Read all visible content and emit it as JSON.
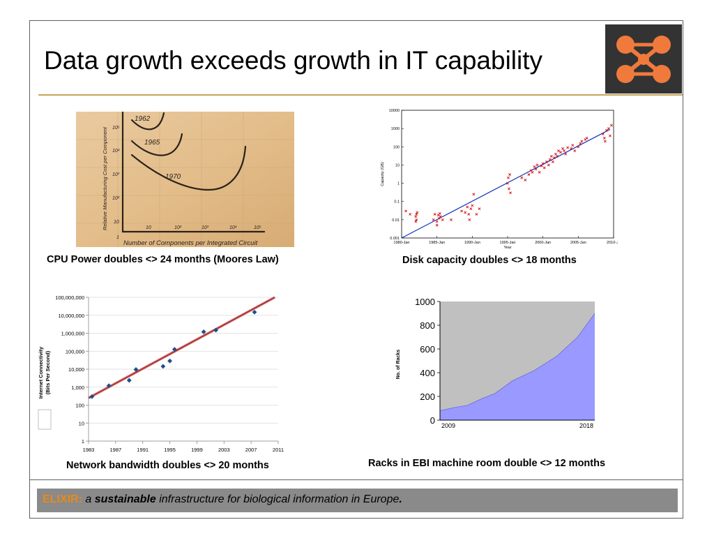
{
  "slide": {
    "title": "Data growth exceeds growth in IT capability",
    "footer": {
      "brand": "ELIXIR:",
      "a": "a",
      "sustainable": "sustainable",
      "rest": "infrastructure for biological information in Europe",
      "period": "."
    }
  },
  "colors": {
    "accent_rule": "#c8a45a",
    "logo_bg": "#333333",
    "logo_mark": "#f07a3c",
    "footer_bg": "#8a8a8a",
    "footer_brand": "#e88a1a"
  },
  "captions": {
    "cpu": "CPU Power doubles <> 24 months (Moores Law)",
    "disk": "Disk capacity doubles <> 18 months",
    "network": "Network bandwidth doubles <> 20 months",
    "racks": "Racks in EBI machine room double <> 12 months"
  },
  "moore_sketch": {
    "curve_labels": [
      "1962",
      "1965",
      "1970"
    ],
    "x_ticks": [
      "1",
      "10",
      "10²",
      "10³",
      "10⁴",
      "10⁵"
    ],
    "y_ticks": [
      "10⁵",
      "10⁴",
      "10³",
      "10²",
      "10"
    ],
    "xlabel": "Number of Components per Integrated Circuit",
    "ylabel": "Relative Manufacturing Cost per Component"
  },
  "chart_data": [
    {
      "type": "scatter",
      "id": "disk",
      "xlabel": "Year",
      "ylabel": "Capacity (GB)",
      "yscale": "log",
      "xlim": [
        1980,
        2010
      ],
      "ylim": [
        0.001,
        10000
      ],
      "x_tick_labels": [
        "1980-Jan",
        "1985-Jan",
        "1990-Jan",
        "1995-Jan",
        "2000-Jan",
        "2005-Jan",
        "2010-Ja"
      ],
      "y_tick_labels": [
        "0.001",
        "0.01",
        "0.1",
        "1",
        "10",
        "100",
        "1000",
        "10000"
      ],
      "trend": [
        [
          1980,
          0.001
        ],
        [
          2009.5,
          900
        ]
      ],
      "points": [
        [
          1980.6,
          0.03
        ],
        [
          1981.2,
          0.02
        ],
        [
          1982,
          0.008
        ],
        [
          1982.1,
          0.01
        ],
        [
          1982,
          0.015
        ],
        [
          1982.1,
          0.02
        ],
        [
          1982.2,
          0.025
        ],
        [
          1984.5,
          0.01
        ],
        [
          1984.7,
          0.02
        ],
        [
          1985,
          0.005
        ],
        [
          1985,
          0.008
        ],
        [
          1985.3,
          0.012
        ],
        [
          1985.5,
          0.015
        ],
        [
          1985.2,
          0.018
        ],
        [
          1985.4,
          0.022
        ],
        [
          1985.8,
          0.01
        ],
        [
          1987,
          0.01
        ],
        [
          1988.5,
          0.03
        ],
        [
          1989,
          0.025
        ],
        [
          1989.3,
          0.05
        ],
        [
          1989.5,
          0.02
        ],
        [
          1989.6,
          0.01
        ],
        [
          1989.8,
          0.04
        ],
        [
          1990,
          0.06
        ],
        [
          1990.2,
          0.25
        ],
        [
          1990.6,
          0.02
        ],
        [
          1991,
          0.04
        ],
        [
          1995,
          1
        ],
        [
          1995.1,
          2
        ],
        [
          1995.2,
          0.5
        ],
        [
          1995.3,
          3
        ],
        [
          1995.4,
          0.3
        ],
        [
          1997,
          2
        ],
        [
          1997.5,
          1.5
        ],
        [
          1998,
          3
        ],
        [
          1998.3,
          5
        ],
        [
          1998.5,
          4
        ],
        [
          1998.8,
          8
        ],
        [
          1999,
          6
        ],
        [
          1999.2,
          10
        ],
        [
          1999.5,
          4
        ],
        [
          1999.8,
          9
        ],
        [
          2000,
          12
        ],
        [
          2000.2,
          7
        ],
        [
          2000.5,
          15
        ],
        [
          2000.8,
          10
        ],
        [
          2001,
          20
        ],
        [
          2001.2,
          30
        ],
        [
          2001.4,
          15
        ],
        [
          2001.6,
          25
        ],
        [
          2001.8,
          40
        ],
        [
          2002,
          30
        ],
        [
          2002.2,
          60
        ],
        [
          2002.5,
          50
        ],
        [
          2002.8,
          80
        ],
        [
          2003,
          60
        ],
        [
          2003.2,
          40
        ],
        [
          2003.5,
          90
        ],
        [
          2004,
          80
        ],
        [
          2004.2,
          120
        ],
        [
          2004.5,
          60
        ],
        [
          2005,
          100
        ],
        [
          2005.3,
          150
        ],
        [
          2005.5,
          200
        ],
        [
          2006,
          250
        ],
        [
          2006.2,
          300
        ],
        [
          2008.5,
          500
        ],
        [
          2008.7,
          300
        ],
        [
          2009,
          800
        ],
        [
          2009.3,
          1000
        ],
        [
          2009.5,
          400
        ],
        [
          2009.7,
          1500
        ],
        [
          2008.8,
          200
        ]
      ]
    },
    {
      "type": "scatter",
      "id": "network",
      "ylabel": "Internet Connectivity\n(Bits Per Second)",
      "yscale": "log",
      "xlim": [
        1983,
        2011
      ],
      "ylim": [
        1,
        100000000
      ],
      "x_tick_labels": [
        "1983",
        "1987",
        "1991",
        "1995",
        "1999",
        "2003",
        "2007",
        "2011"
      ],
      "y_tick_labels": [
        "1",
        "10",
        "100",
        "1,000",
        "10,000",
        "100,000",
        "1,000,000",
        "10,000,000",
        "100,000,000"
      ],
      "trend": [
        [
          1983,
          250
        ],
        [
          2010.5,
          100000000
        ]
      ],
      "points": [
        [
          1983.5,
          300
        ],
        [
          1986,
          1200
        ],
        [
          1989,
          2400
        ],
        [
          1990,
          9600
        ],
        [
          1994,
          14400
        ],
        [
          1995,
          28800
        ],
        [
          1995.7,
          128000
        ],
        [
          2000,
          1200000
        ],
        [
          2001.8,
          1500000
        ],
        [
          2007.5,
          15000000
        ]
      ]
    },
    {
      "type": "area",
      "id": "racks",
      "ylabel": "No. of Racks",
      "ylim": [
        0,
        1000
      ],
      "y_tick_labels": [
        "0",
        "200",
        "400",
        "600",
        "800",
        "1000"
      ],
      "x_labels": [
        "2009",
        "2018"
      ],
      "x": [
        2009,
        2009.8,
        2010.6,
        2011.5,
        2012.2,
        2013.2,
        2014.5,
        2015.8,
        2017,
        2018
      ],
      "values": [
        80,
        105,
        125,
        185,
        225,
        330,
        420,
        540,
        700,
        900
      ],
      "colors": {
        "fill": "#9999ff",
        "plot_bg": "#c0c0c0",
        "line": "#000000"
      }
    }
  ]
}
